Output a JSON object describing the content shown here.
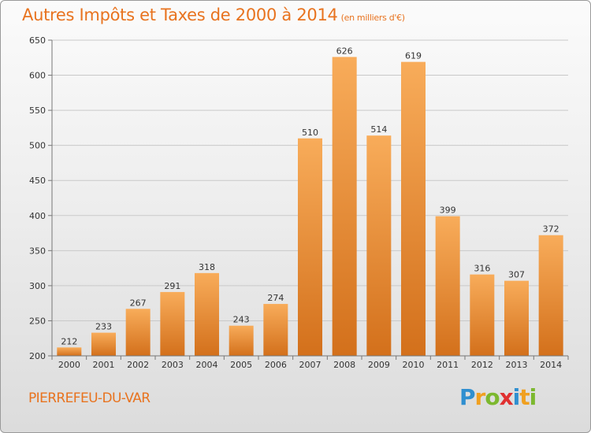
{
  "header": {
    "title": "Autres Impôts et Taxes de 2000 à 2014",
    "subtitle": "(en milliers d'€)"
  },
  "footer": {
    "town": "PIERREFEU-DU-VAR",
    "logo_letters": [
      "P",
      "r",
      "o",
      "x",
      "i",
      "t",
      "i"
    ],
    "logo_colors": [
      "#2f8fd0",
      "#f0a020",
      "#7cb82f",
      "#e03030",
      "#2f8fd0",
      "#f0a020",
      "#7cb82f"
    ]
  },
  "colors": {
    "accent": "#e8731f",
    "bar_light": "#f6a856",
    "bar_dark": "#d5721c",
    "grid": "#c9c9c9",
    "text": "#333333"
  },
  "chart_data": {
    "type": "bar",
    "title": "Autres Impôts et Taxes de 2000 à 2014",
    "subtitle": "(en milliers d'€)",
    "categories": [
      "2000",
      "2001",
      "2002",
      "2003",
      "2004",
      "2005",
      "2006",
      "2007",
      "2008",
      "2009",
      "2010",
      "2011",
      "2012",
      "2013",
      "2014"
    ],
    "values": [
      212,
      233,
      267,
      291,
      318,
      243,
      274,
      510,
      626,
      514,
      619,
      399,
      316,
      307,
      372
    ],
    "ylim": [
      200,
      650
    ],
    "yticks": [
      200,
      250,
      300,
      350,
      400,
      450,
      500,
      550,
      600,
      650
    ],
    "xlabel": "",
    "ylabel": "",
    "grid": true,
    "legend": "none",
    "data_labels": true
  }
}
